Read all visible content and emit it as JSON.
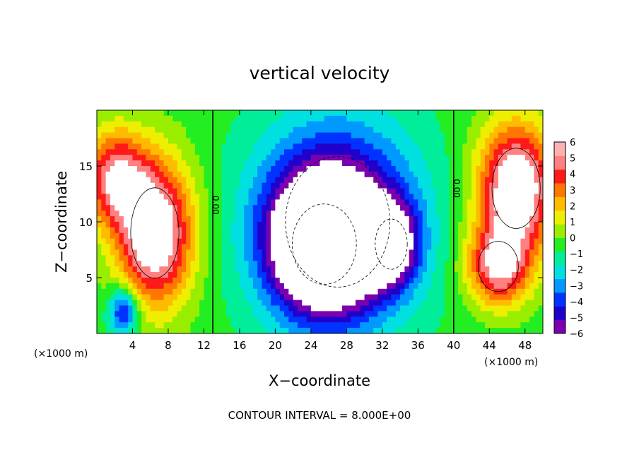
{
  "chart_data": {
    "type": "heatmap",
    "title": "vertical velocity",
    "xlabel": "X−coordinate",
    "ylabel": "Z−coordinate",
    "x_unit": "(×1000 m)",
    "y_unit": "(×1000 m)",
    "xlim": [
      0,
      50
    ],
    "ylim": [
      0,
      20
    ],
    "x_ticks": [
      4,
      8,
      12,
      16,
      20,
      24,
      28,
      32,
      36,
      40,
      44,
      48
    ],
    "x_tick_labels": [
      "4",
      "8",
      "12",
      "16",
      "20",
      "24",
      "28",
      "32",
      "36",
      "40",
      "44",
      "48"
    ],
    "y_ticks": [
      5,
      10,
      15
    ],
    "y_tick_labels": [
      "5",
      "10",
      "15"
    ],
    "colorbar": {
      "min": -6,
      "max": 6,
      "ticks": [
        6,
        5,
        4,
        3,
        2,
        1,
        0,
        -1,
        -2,
        -3,
        -4,
        -5,
        -6
      ],
      "tick_labels": [
        "6",
        "5",
        "4",
        "3",
        "2",
        "1",
        "0",
        "−1",
        "−2",
        "−3",
        "−4",
        "−5",
        "−6"
      ],
      "colors": [
        "#7a00b0",
        "#2200cc",
        "#0033ff",
        "#0099ff",
        "#00e0e0",
        "#00ee99",
        "#22ee22",
        "#99ee00",
        "#eeee00",
        "#ffbb00",
        "#ff7700",
        "#ff1a1a",
        "#ff8080",
        "#ffb0b0"
      ]
    },
    "contour_labels": [
      {
        "text": "0.00",
        "x": 13,
        "z": 11.5,
        "rotation": 90
      },
      {
        "text": "0.00",
        "x": 40,
        "z": 13,
        "rotation": 90
      }
    ],
    "features": [
      {
        "type": "updraft",
        "x": 2,
        "z": 14,
        "sigma_x": 2.5,
        "sigma_z": 3,
        "w": 5.5
      },
      {
        "type": "updraft",
        "x": 6.5,
        "z": 9,
        "sigma_x": 3,
        "sigma_z": 4.5,
        "w": 8
      },
      {
        "type": "updraft",
        "x": 47,
        "z": 13,
        "sigma_x": 3,
        "sigma_z": 4,
        "w": 8
      },
      {
        "type": "updraft",
        "x": 45,
        "z": 6,
        "sigma_x": 2.5,
        "sigma_z": 2.5,
        "w": 6
      },
      {
        "type": "downdraft",
        "x": 27,
        "z": 10,
        "sigma_x": 6.5,
        "sigma_z": 6.5,
        "w": -6
      },
      {
        "type": "downdraft",
        "x": 25.5,
        "z": 8,
        "sigma_x": 4,
        "sigma_z": 4,
        "w": -10
      },
      {
        "type": "downdraft",
        "x": 33,
        "z": 8,
        "sigma_x": 2,
        "sigma_z": 2.5,
        "w": -6
      },
      {
        "type": "downdraft",
        "x": 3,
        "z": 2,
        "sigma_x": 1.2,
        "sigma_z": 1.5,
        "w": -5
      }
    ],
    "contour_interval": 8.0
  },
  "footer": {
    "contour_interval_text": "CONTOUR INTERVAL = 8.000E+00"
  }
}
